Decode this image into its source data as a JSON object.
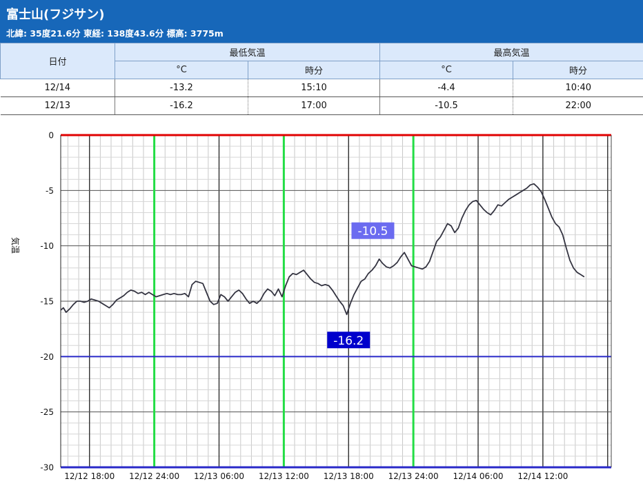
{
  "header": {
    "station_name": "富士山(フジサン)",
    "location": "北緯: 35度21.6分 東経: 138度43.6分 標高: 3775m"
  },
  "table": {
    "date_header": "日付",
    "min_header": "最低気温",
    "max_header": "最高気温",
    "celsius_header": "°C",
    "time_header": "時分",
    "rows": [
      {
        "date": "12/14",
        "min_temp": "-13.2",
        "min_time": "15:10",
        "max_temp": "-4.4",
        "max_time": "10:40"
      },
      {
        "date": "12/13",
        "min_temp": "-16.2",
        "min_time": "17:00",
        "max_temp": "-10.5",
        "max_time": "22:00"
      }
    ]
  },
  "chart_data": {
    "type": "line",
    "ylabel": "気温",
    "ylim": [
      -30,
      0
    ],
    "xlim": [
      "12/12 15:20",
      "12/14 18:20"
    ],
    "grid": true,
    "x_tick_labels": [
      "12/12 18:00",
      "12/12 24:00",
      "12/13 06:00",
      "12/13 12:00",
      "12/13 18:00",
      "12/13 24:00",
      "12/14 06:00",
      "12/14 12:00"
    ],
    "y_tick_labels": [
      "0",
      "-5",
      "-10",
      "-15",
      "-20",
      "-25",
      "-30"
    ],
    "reference_lines": {
      "top_value": 0,
      "top_color": "#e00000",
      "lower_value": -20,
      "lower_color": "#2828c8",
      "bottom_value": -30
    },
    "midnight_lines": {
      "color": "#22dd44",
      "times": [
        "12/12 24:00",
        "12/13 12:00",
        "12/13 24:00"
      ]
    },
    "annotations": [
      {
        "text": "-10.5",
        "time": "12/13 20:15",
        "value": -10.5,
        "color": "#6b6bf0"
      },
      {
        "text": "-16.2",
        "time": "12/13 18:00",
        "value": -16.2,
        "color": "#0000cc"
      }
    ],
    "series": [
      {
        "color": "#333340",
        "points": [
          [
            "12/12 15:20",
            -15.8
          ],
          [
            "12/12 15:35",
            -15.6
          ],
          [
            "12/12 15:50",
            -16.0
          ],
          [
            "12/12 16:10",
            -15.7
          ],
          [
            "12/12 16:30",
            -15.3
          ],
          [
            "12/12 16:50",
            -15.0
          ],
          [
            "12/12 17:10",
            -15.0
          ],
          [
            "12/12 17:30",
            -15.1
          ],
          [
            "12/12 17:50",
            -15.0
          ],
          [
            "12/12 18:10",
            -14.8
          ],
          [
            "12/12 18:30",
            -14.9
          ],
          [
            "12/12 18:50",
            -15.0
          ],
          [
            "12/12 19:10",
            -15.2
          ],
          [
            "12/12 19:30",
            -15.4
          ],
          [
            "12/12 19:50",
            -15.6
          ],
          [
            "12/12 20:10",
            -15.3
          ],
          [
            "12/12 20:30",
            -14.9
          ],
          [
            "12/12 20:50",
            -14.7
          ],
          [
            "12/12 21:10",
            -14.5
          ],
          [
            "12/12 21:30",
            -14.2
          ],
          [
            "12/12 21:50",
            -14.0
          ],
          [
            "12/12 22:10",
            -14.1
          ],
          [
            "12/12 22:30",
            -14.3
          ],
          [
            "12/12 22:50",
            -14.2
          ],
          [
            "12/12 23:10",
            -14.4
          ],
          [
            "12/12 23:30",
            -14.2
          ],
          [
            "12/12 23:50",
            -14.4
          ],
          [
            "12/13 00:10",
            -14.6
          ],
          [
            "12/13 00:30",
            -14.5
          ],
          [
            "12/13 00:50",
            -14.4
          ],
          [
            "12/13 01:10",
            -14.3
          ],
          [
            "12/13 01:30",
            -14.4
          ],
          [
            "12/13 01:50",
            -14.3
          ],
          [
            "12/13 02:10",
            -14.4
          ],
          [
            "12/13 02:30",
            -14.4
          ],
          [
            "12/13 02:50",
            -14.3
          ],
          [
            "12/13 03:10",
            -14.6
          ],
          [
            "12/13 03:30",
            -13.5
          ],
          [
            "12/13 03:50",
            -13.2
          ],
          [
            "12/13 04:10",
            -13.3
          ],
          [
            "12/13 04:30",
            -13.4
          ],
          [
            "12/13 04:50",
            -14.2
          ],
          [
            "12/13 05:10",
            -15.0
          ],
          [
            "12/13 05:30",
            -15.3
          ],
          [
            "12/13 05:50",
            -15.2
          ],
          [
            "12/13 06:10",
            -14.4
          ],
          [
            "12/13 06:30",
            -14.6
          ],
          [
            "12/13 06:50",
            -15.0
          ],
          [
            "12/13 07:10",
            -14.6
          ],
          [
            "12/13 07:30",
            -14.2
          ],
          [
            "12/13 07:50",
            -14.0
          ],
          [
            "12/13 08:10",
            -14.3
          ],
          [
            "12/13 08:30",
            -14.8
          ],
          [
            "12/13 08:50",
            -15.2
          ],
          [
            "12/13 09:10",
            -15.0
          ],
          [
            "12/13 09:30",
            -15.2
          ],
          [
            "12/13 09:50",
            -14.9
          ],
          [
            "12/13 10:10",
            -14.3
          ],
          [
            "12/13 10:30",
            -13.9
          ],
          [
            "12/13 10:50",
            -14.1
          ],
          [
            "12/13 11:10",
            -14.5
          ],
          [
            "12/13 11:30",
            -13.9
          ],
          [
            "12/13 11:50",
            -14.6
          ],
          [
            "12/13 12:10",
            -13.6
          ],
          [
            "12/13 12:30",
            -12.8
          ],
          [
            "12/13 12:50",
            -12.5
          ],
          [
            "12/13 13:10",
            -12.6
          ],
          [
            "12/13 13:30",
            -12.4
          ],
          [
            "12/13 13:50",
            -12.2
          ],
          [
            "12/13 14:10",
            -12.6
          ],
          [
            "12/13 14:30",
            -13.0
          ],
          [
            "12/13 14:50",
            -13.3
          ],
          [
            "12/13 15:10",
            -13.4
          ],
          [
            "12/13 15:30",
            -13.6
          ],
          [
            "12/13 15:50",
            -13.5
          ],
          [
            "12/13 16:10",
            -13.6
          ],
          [
            "12/13 16:30",
            -14.0
          ],
          [
            "12/13 16:50",
            -14.5
          ],
          [
            "12/13 17:10",
            -15.0
          ],
          [
            "12/13 17:30",
            -15.4
          ],
          [
            "12/13 17:50",
            -16.2
          ],
          [
            "12/13 18:10",
            -15.2
          ],
          [
            "12/13 18:30",
            -14.4
          ],
          [
            "12/13 18:50",
            -13.8
          ],
          [
            "12/13 19:10",
            -13.2
          ],
          [
            "12/13 19:30",
            -13.0
          ],
          [
            "12/13 19:50",
            -12.5
          ],
          [
            "12/13 20:10",
            -12.2
          ],
          [
            "12/13 20:30",
            -11.8
          ],
          [
            "12/13 20:50",
            -11.2
          ],
          [
            "12/13 21:10",
            -11.6
          ],
          [
            "12/13 21:30",
            -11.9
          ],
          [
            "12/13 21:50",
            -12.0
          ],
          [
            "12/13 22:10",
            -11.8
          ],
          [
            "12/13 22:30",
            -11.5
          ],
          [
            "12/13 22:50",
            -11.0
          ],
          [
            "12/13 23:10",
            -10.6
          ],
          [
            "12/13 23:30",
            -11.2
          ],
          [
            "12/13 23:50",
            -11.8
          ],
          [
            "12/14 00:10",
            -11.9
          ],
          [
            "12/14 00:30",
            -12.0
          ],
          [
            "12/14 00:50",
            -12.1
          ],
          [
            "12/14 01:10",
            -11.9
          ],
          [
            "12/14 01:30",
            -11.4
          ],
          [
            "12/14 01:50",
            -10.5
          ],
          [
            "12/14 02:10",
            -9.6
          ],
          [
            "12/14 02:30",
            -9.2
          ],
          [
            "12/14 02:50",
            -8.6
          ],
          [
            "12/14 03:10",
            -8.0
          ],
          [
            "12/14 03:30",
            -8.2
          ],
          [
            "12/14 03:50",
            -8.8
          ],
          [
            "12/14 04:10",
            -8.4
          ],
          [
            "12/14 04:30",
            -7.5
          ],
          [
            "12/14 04:50",
            -6.8
          ],
          [
            "12/14 05:10",
            -6.3
          ],
          [
            "12/14 05:30",
            -6.0
          ],
          [
            "12/14 05:50",
            -5.9
          ],
          [
            "12/14 06:10",
            -6.3
          ],
          [
            "12/14 06:30",
            -6.7
          ],
          [
            "12/14 06:50",
            -7.0
          ],
          [
            "12/14 07:10",
            -7.2
          ],
          [
            "12/14 07:30",
            -6.8
          ],
          [
            "12/14 07:50",
            -6.3
          ],
          [
            "12/14 08:10",
            -6.4
          ],
          [
            "12/14 08:30",
            -6.1
          ],
          [
            "12/14 08:50",
            -5.8
          ],
          [
            "12/14 09:10",
            -5.6
          ],
          [
            "12/14 09:30",
            -5.4
          ],
          [
            "12/14 09:50",
            -5.2
          ],
          [
            "12/14 10:10",
            -5.0
          ],
          [
            "12/14 10:30",
            -4.8
          ],
          [
            "12/14 10:50",
            -4.5
          ],
          [
            "12/14 11:10",
            -4.4
          ],
          [
            "12/14 11:30",
            -4.7
          ],
          [
            "12/14 11:50",
            -5.1
          ],
          [
            "12/14 12:10",
            -5.8
          ],
          [
            "12/14 12:30",
            -6.6
          ],
          [
            "12/14 12:50",
            -7.4
          ],
          [
            "12/14 13:10",
            -8.0
          ],
          [
            "12/14 13:30",
            -8.3
          ],
          [
            "12/14 13:50",
            -9.0
          ],
          [
            "12/14 14:10",
            -10.2
          ],
          [
            "12/14 14:30",
            -11.3
          ],
          [
            "12/14 14:50",
            -12.0
          ],
          [
            "12/14 15:10",
            -12.4
          ],
          [
            "12/14 15:30",
            -12.6
          ],
          [
            "12/14 15:50",
            -12.8
          ]
        ]
      }
    ]
  }
}
